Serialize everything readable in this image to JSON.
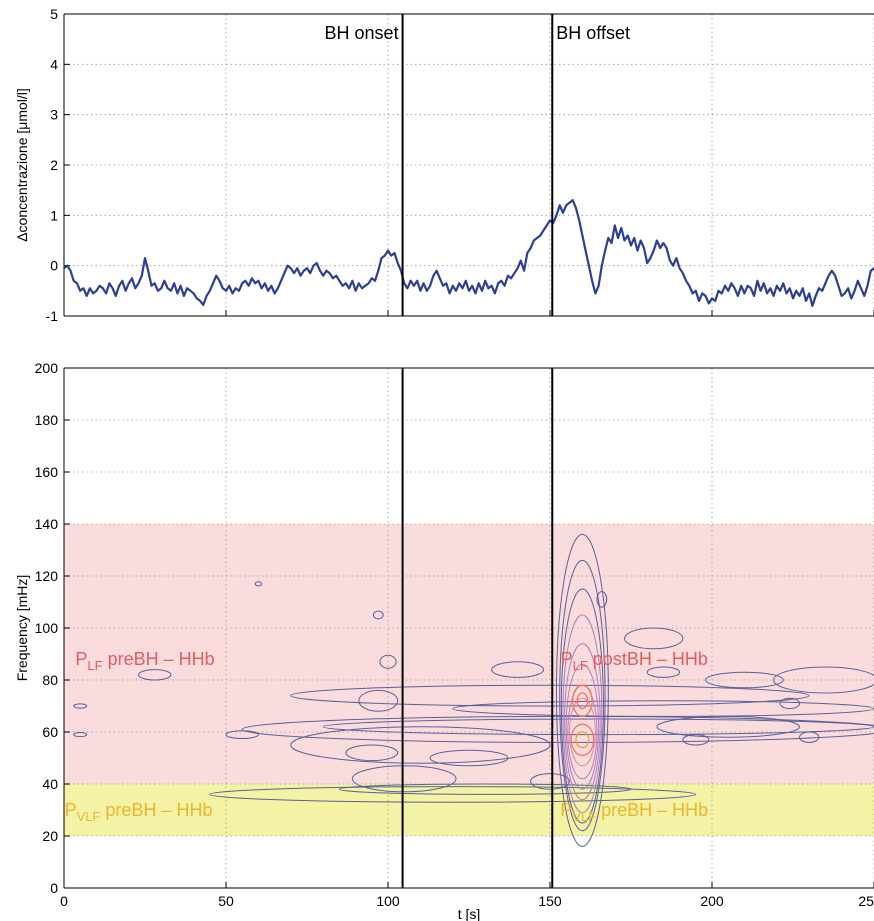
{
  "chart_data": [
    {
      "type": "line",
      "title": "",
      "xlabel": "",
      "ylabel": "Δconcentrazione [μmol/l]",
      "xlim": [
        0,
        250
      ],
      "ylim": [
        -1,
        5
      ],
      "xticks": [
        0,
        50,
        100,
        150,
        200,
        250
      ],
      "yticks": [
        -1,
        0,
        1,
        2,
        3,
        4,
        5
      ],
      "ytick_labels": [
        "-1",
        "0",
        "1",
        "2",
        "3",
        "4",
        "5"
      ],
      "grid": true,
      "line_color": "#2c3e96",
      "series_points": [
        [
          0,
          -0.05
        ],
        [
          1,
          0.0
        ],
        [
          2,
          -0.1
        ],
        [
          3,
          -0.3
        ],
        [
          4,
          -0.35
        ],
        [
          5,
          -0.5
        ],
        [
          6,
          -0.45
        ],
        [
          7,
          -0.6
        ],
        [
          8,
          -0.45
        ],
        [
          9,
          -0.55
        ],
        [
          10,
          -0.5
        ],
        [
          11,
          -0.4
        ],
        [
          12,
          -0.45
        ],
        [
          13,
          -0.55
        ],
        [
          14,
          -0.35
        ],
        [
          15,
          -0.45
        ],
        [
          16,
          -0.6
        ],
        [
          17,
          -0.4
        ],
        [
          18,
          -0.3
        ],
        [
          19,
          -0.5
        ],
        [
          20,
          -0.35
        ],
        [
          21,
          -0.25
        ],
        [
          22,
          -0.45
        ],
        [
          23,
          -0.35
        ],
        [
          24,
          -0.2
        ],
        [
          25,
          0.15
        ],
        [
          26,
          -0.1
        ],
        [
          27,
          -0.4
        ],
        [
          28,
          -0.35
        ],
        [
          29,
          -0.5
        ],
        [
          30,
          -0.45
        ],
        [
          31,
          -0.3
        ],
        [
          32,
          -0.45
        ],
        [
          33,
          -0.5
        ],
        [
          34,
          -0.35
        ],
        [
          35,
          -0.55
        ],
        [
          36,
          -0.4
        ],
        [
          37,
          -0.6
        ],
        [
          38,
          -0.45
        ],
        [
          39,
          -0.5
        ],
        [
          40,
          -0.55
        ],
        [
          41,
          -0.65
        ],
        [
          42,
          -0.7
        ],
        [
          43,
          -0.78
        ],
        [
          44,
          -0.6
        ],
        [
          45,
          -0.5
        ],
        [
          46,
          -0.35
        ],
        [
          47,
          -0.2
        ],
        [
          48,
          -0.3
        ],
        [
          49,
          -0.45
        ],
        [
          50,
          -0.5
        ],
        [
          51,
          -0.4
        ],
        [
          52,
          -0.55
        ],
        [
          53,
          -0.45
        ],
        [
          54,
          -0.5
        ],
        [
          55,
          -0.35
        ],
        [
          56,
          -0.3
        ],
        [
          57,
          -0.4
        ],
        [
          58,
          -0.25
        ],
        [
          59,
          -0.35
        ],
        [
          60,
          -0.3
        ],
        [
          61,
          -0.45
        ],
        [
          62,
          -0.35
        ],
        [
          63,
          -0.5
        ],
        [
          64,
          -0.4
        ],
        [
          65,
          -0.55
        ],
        [
          66,
          -0.45
        ],
        [
          67,
          -0.3
        ],
        [
          68,
          -0.15
        ],
        [
          69,
          0.0
        ],
        [
          70,
          -0.05
        ],
        [
          71,
          -0.15
        ],
        [
          72,
          -0.05
        ],
        [
          73,
          -0.2
        ],
        [
          74,
          -0.1
        ],
        [
          75,
          -0.05
        ],
        [
          76,
          -0.15
        ],
        [
          77,
          0.0
        ],
        [
          78,
          0.05
        ],
        [
          79,
          -0.1
        ],
        [
          80,
          -0.2
        ],
        [
          81,
          -0.1
        ],
        [
          82,
          -0.15
        ],
        [
          83,
          -0.25
        ],
        [
          84,
          -0.2
        ],
        [
          85,
          -0.3
        ],
        [
          86,
          -0.4
        ],
        [
          87,
          -0.35
        ],
        [
          88,
          -0.45
        ],
        [
          89,
          -0.3
        ],
        [
          90,
          -0.5
        ],
        [
          91,
          -0.35
        ],
        [
          92,
          -0.45
        ],
        [
          93,
          -0.4
        ],
        [
          94,
          -0.35
        ],
        [
          95,
          -0.25
        ],
        [
          96,
          -0.3
        ],
        [
          97,
          -0.1
        ],
        [
          98,
          0.15
        ],
        [
          99,
          0.2
        ],
        [
          100,
          0.3
        ],
        [
          101,
          0.2
        ],
        [
          102,
          0.25
        ],
        [
          103,
          0.05
        ],
        [
          104,
          -0.1
        ],
        [
          105,
          -0.35
        ],
        [
          106,
          -0.45
        ],
        [
          107,
          -0.3
        ],
        [
          108,
          -0.4
        ],
        [
          109,
          -0.3
        ],
        [
          110,
          -0.5
        ],
        [
          111,
          -0.35
        ],
        [
          112,
          -0.5
        ],
        [
          113,
          -0.4
        ],
        [
          114,
          -0.2
        ],
        [
          115,
          -0.1
        ],
        [
          116,
          -0.25
        ],
        [
          117,
          -0.4
        ],
        [
          118,
          -0.35
        ],
        [
          119,
          -0.55
        ],
        [
          120,
          -0.4
        ],
        [
          121,
          -0.5
        ],
        [
          122,
          -0.35
        ],
        [
          123,
          -0.45
        ],
        [
          124,
          -0.3
        ],
        [
          125,
          -0.5
        ],
        [
          126,
          -0.4
        ],
        [
          127,
          -0.55
        ],
        [
          128,
          -0.35
        ],
        [
          129,
          -0.5
        ],
        [
          130,
          -0.3
        ],
        [
          131,
          -0.45
        ],
        [
          132,
          -0.4
        ],
        [
          133,
          -0.55
        ],
        [
          134,
          -0.35
        ],
        [
          135,
          -0.3
        ],
        [
          136,
          -0.4
        ],
        [
          137,
          -0.2
        ],
        [
          138,
          -0.25
        ],
        [
          139,
          -0.15
        ],
        [
          140,
          -0.05
        ],
        [
          141,
          0.1
        ],
        [
          142,
          -0.1
        ],
        [
          143,
          0.25
        ],
        [
          144,
          0.35
        ],
        [
          145,
          0.5
        ],
        [
          146,
          0.55
        ],
        [
          147,
          0.6
        ],
        [
          148,
          0.7
        ],
        [
          149,
          0.8
        ],
        [
          150,
          0.9
        ],
        [
          151,
          0.85
        ],
        [
          152,
          1.0
        ],
        [
          153,
          1.2
        ],
        [
          154,
          1.05
        ],
        [
          155,
          1.2
        ],
        [
          156,
          1.25
        ],
        [
          157,
          1.3
        ],
        [
          158,
          1.15
        ],
        [
          159,
          0.9
        ],
        [
          160,
          0.6
        ],
        [
          161,
          0.3
        ],
        [
          162,
          0.0
        ],
        [
          163,
          -0.3
        ],
        [
          164,
          -0.55
        ],
        [
          165,
          -0.4
        ],
        [
          166,
          0.0
        ],
        [
          167,
          0.3
        ],
        [
          168,
          0.55
        ],
        [
          169,
          0.45
        ],
        [
          170,
          0.8
        ],
        [
          171,
          0.55
        ],
        [
          172,
          0.75
        ],
        [
          173,
          0.5
        ],
        [
          174,
          0.6
        ],
        [
          175,
          0.4
        ],
        [
          176,
          0.55
        ],
        [
          177,
          0.3
        ],
        [
          178,
          0.5
        ],
        [
          179,
          0.35
        ],
        [
          180,
          0.05
        ],
        [
          181,
          0.15
        ],
        [
          182,
          0.3
        ],
        [
          183,
          0.5
        ],
        [
          184,
          0.35
        ],
        [
          185,
          0.45
        ],
        [
          186,
          0.35
        ],
        [
          187,
          0.1
        ],
        [
          188,
          0.0
        ],
        [
          189,
          0.15
        ],
        [
          190,
          -0.05
        ],
        [
          191,
          -0.15
        ],
        [
          192,
          -0.3
        ],
        [
          193,
          -0.4
        ],
        [
          194,
          -0.55
        ],
        [
          195,
          -0.5
        ],
        [
          196,
          -0.7
        ],
        [
          197,
          -0.55
        ],
        [
          198,
          -0.6
        ],
        [
          199,
          -0.75
        ],
        [
          200,
          -0.65
        ],
        [
          201,
          -0.7
        ],
        [
          202,
          -0.5
        ],
        [
          203,
          -0.55
        ],
        [
          204,
          -0.4
        ],
        [
          205,
          -0.5
        ],
        [
          206,
          -0.35
        ],
        [
          207,
          -0.45
        ],
        [
          208,
          -0.6
        ],
        [
          209,
          -0.4
        ],
        [
          210,
          -0.55
        ],
        [
          211,
          -0.4
        ],
        [
          212,
          -0.45
        ],
        [
          213,
          -0.6
        ],
        [
          214,
          -0.3
        ],
        [
          215,
          -0.5
        ],
        [
          216,
          -0.35
        ],
        [
          217,
          -0.55
        ],
        [
          218,
          -0.45
        ],
        [
          219,
          -0.6
        ],
        [
          220,
          -0.4
        ],
        [
          221,
          -0.5
        ],
        [
          222,
          -0.35
        ],
        [
          223,
          -0.55
        ],
        [
          224,
          -0.45
        ],
        [
          225,
          -0.65
        ],
        [
          226,
          -0.5
        ],
        [
          227,
          -0.6
        ],
        [
          228,
          -0.45
        ],
        [
          229,
          -0.7
        ],
        [
          230,
          -0.55
        ],
        [
          231,
          -0.8
        ],
        [
          232,
          -0.6
        ],
        [
          233,
          -0.45
        ],
        [
          234,
          -0.5
        ],
        [
          235,
          -0.35
        ],
        [
          236,
          -0.2
        ],
        [
          237,
          -0.1
        ],
        [
          238,
          -0.2
        ],
        [
          239,
          -0.4
        ],
        [
          240,
          -0.6
        ],
        [
          241,
          -0.55
        ],
        [
          242,
          -0.45
        ],
        [
          243,
          -0.65
        ],
        [
          244,
          -0.5
        ],
        [
          245,
          -0.3
        ],
        [
          246,
          -0.45
        ],
        [
          247,
          -0.6
        ],
        [
          248,
          -0.4
        ],
        [
          249,
          -0.1
        ],
        [
          250,
          -0.05
        ],
        [
          252,
          -0.1
        ]
      ],
      "vlines": [
        {
          "x": 104.5,
          "label": "BH onset"
        },
        {
          "x": 150.7,
          "label": "BH offset"
        }
      ]
    },
    {
      "type": "heatmap",
      "title": "",
      "xlabel": "t [s]",
      "ylabel": "Frequency [mHz]",
      "xlim": [
        0,
        250
      ],
      "ylim": [
        0,
        200
      ],
      "xticks": [
        0,
        50,
        100,
        150,
        200,
        250
      ],
      "xtick_labels": [
        "0",
        "50",
        "100",
        "150",
        "200",
        "250"
      ],
      "yticks": [
        0,
        20,
        40,
        60,
        80,
        100,
        120,
        140,
        160,
        180,
        200
      ],
      "ytick_labels": [
        "0",
        "20",
        "40",
        "60",
        "80",
        "100",
        "120",
        "140",
        "160",
        "180",
        "200"
      ],
      "grid": true,
      "bands": [
        {
          "name": "LF",
          "y_range": [
            40,
            140
          ],
          "color": "#fadcdc"
        },
        {
          "name": "VLF",
          "y_range": [
            20,
            40
          ],
          "color": "#f3f2a5"
        }
      ],
      "band_labels": [
        {
          "P": "P",
          "sub": "LF",
          "text": " preBH – HHb",
          "x": 25,
          "y": 88,
          "color": "#e65b62"
        },
        {
          "P": "P",
          "sub": "LF",
          "text": " postBH – HHb",
          "x": 176,
          "y": 88,
          "color": "#e65b62"
        },
        {
          "P": "P",
          "sub": "VLF",
          "text": " preBH – HHb",
          "x": 23,
          "y": 30,
          "color": "#ebb62c"
        },
        {
          "P": "P",
          "sub": "VLF",
          "text": " preBH – HHb",
          "x": 176,
          "y": 30,
          "color": "#ebb62c"
        }
      ],
      "vlines": [
        {
          "x": 104.5,
          "label": "BH onset"
        },
        {
          "x": 150.7,
          "label": "BH offset"
        }
      ],
      "contour_peaks": [
        {
          "t": 160,
          "f": 57,
          "level": "max"
        },
        {
          "t": 160,
          "f": 72,
          "level": "high"
        }
      ],
      "colors": {
        "contour_low": "#5a5f9b",
        "contour_mid": "#b07ec2",
        "contour_high": "#ff7060"
      }
    }
  ]
}
